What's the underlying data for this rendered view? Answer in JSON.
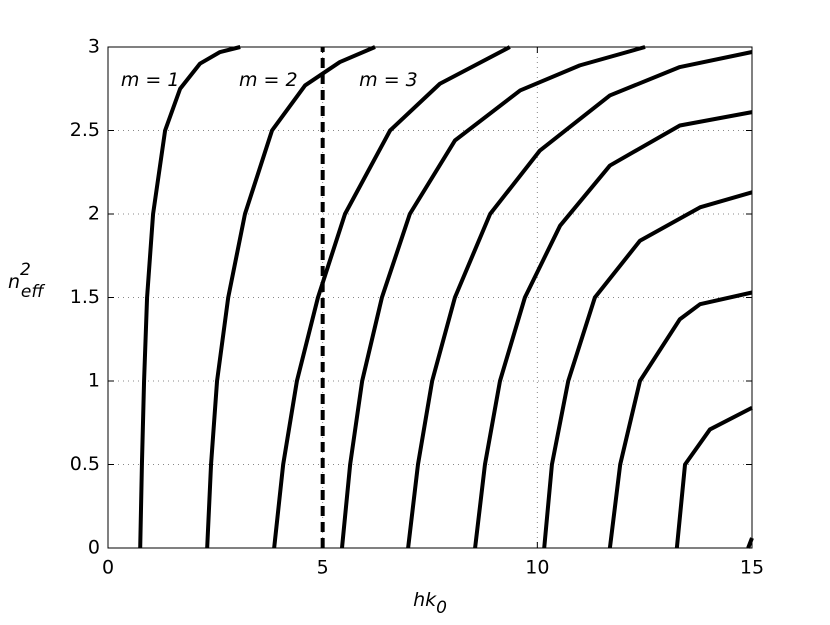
{
  "chart_data": {
    "type": "line",
    "xlabel": "hk",
    "xlabel_sub": "0",
    "ylabel": "n",
    "ylabel_sup": "2",
    "ylabel_sub": "eff",
    "xlim": [
      0,
      15
    ],
    "ylim": [
      0,
      3
    ],
    "xticks": [
      0,
      5,
      10,
      15
    ],
    "yticks": [
      0,
      0.5,
      1,
      1.5,
      2,
      2.5,
      3
    ],
    "grid": true,
    "vline": {
      "x": 5,
      "color": "#000"
    },
    "annotations": [
      {
        "text": "m  = 1",
        "x": 0.3,
        "y": 2.8
      },
      {
        "text": "m  = 2",
        "x": 3.05,
        "y": 2.8
      },
      {
        "text": "m  = 3",
        "x": 5.85,
        "y": 2.8
      }
    ],
    "series": [
      {
        "color": "#000",
        "x": [
          0.75,
          0.79,
          0.84,
          0.91,
          1.05,
          1.33,
          1.68,
          2.14,
          2.61,
          3.08
        ],
        "values": [
          0,
          0.5,
          1.0,
          1.5,
          2.0,
          2.5,
          2.75,
          2.9,
          2.97,
          3.0
        ]
      },
      {
        "color": "#000",
        "x": [
          2.31,
          2.4,
          2.54,
          2.8,
          3.19,
          3.82,
          4.59,
          5.4,
          6.22
        ],
        "values": [
          0,
          0.5,
          1.0,
          1.5,
          2.0,
          2.5,
          2.77,
          2.91,
          3.0
        ]
      },
      {
        "color": "#000",
        "x": [
          3.87,
          4.08,
          4.4,
          4.89,
          5.52,
          6.57,
          7.73,
          9.36
        ],
        "values": [
          0,
          0.5,
          1.0,
          1.5,
          2.0,
          2.5,
          2.78,
          3.0
        ]
      },
      {
        "color": "#000",
        "x": [
          5.45,
          5.64,
          5.92,
          6.38,
          7.03,
          8.08,
          9.6,
          10.99,
          12.51
        ],
        "values": [
          0,
          0.5,
          1.0,
          1.5,
          2.0,
          2.44,
          2.74,
          2.89,
          3.0
        ]
      },
      {
        "color": "#000",
        "x": [
          6.99,
          7.22,
          7.55,
          8.08,
          8.9,
          10.06,
          11.69,
          13.32,
          15
        ],
        "values": [
          0,
          0.5,
          1.0,
          1.5,
          2.0,
          2.38,
          2.71,
          2.88,
          2.97
        ]
      },
      {
        "color": "#000",
        "x": [
          8.55,
          8.78,
          9.13,
          9.71,
          10.53,
          11.69,
          13.32,
          15
        ],
        "values": [
          0,
          0.5,
          1.0,
          1.5,
          1.93,
          2.29,
          2.53,
          2.61
        ]
      },
      {
        "color": "#000",
        "x": [
          10.16,
          10.34,
          10.72,
          11.34,
          12.39,
          13.79,
          15
        ],
        "values": [
          0,
          0.5,
          1.0,
          1.5,
          1.84,
          2.04,
          2.13
        ]
      },
      {
        "color": "#000",
        "x": [
          11.69,
          11.93,
          12.39,
          13.32,
          13.79,
          15
        ],
        "values": [
          0,
          0.5,
          1.0,
          1.37,
          1.46,
          1.53
        ]
      },
      {
        "color": "#000",
        "x": [
          13.25,
          13.44,
          14.02,
          15
        ],
        "values": [
          0,
          0.5,
          0.71,
          0.84
        ]
      },
      {
        "color": "#000",
        "x": [
          14.91,
          15
        ],
        "values": [
          0,
          0.06
        ]
      }
    ]
  }
}
